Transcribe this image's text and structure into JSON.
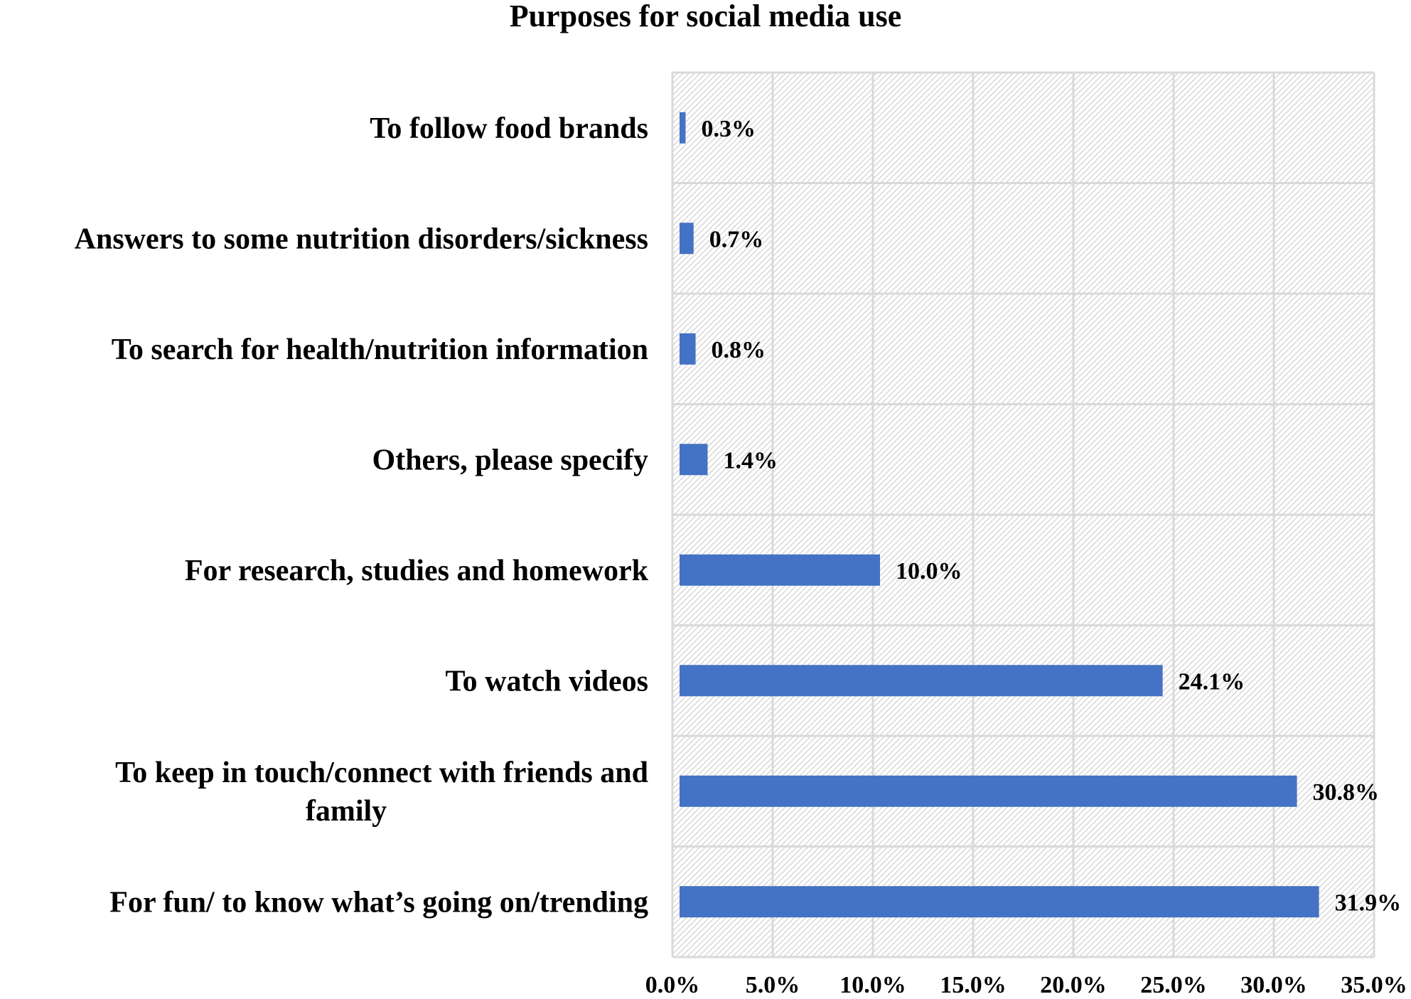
{
  "chart_data": {
    "type": "bar",
    "orientation": "horizontal",
    "title": "Purposes for social media use",
    "categories": [
      "To follow food brands",
      "Answers to some nutrition disorders/sickness",
      "To search for health/nutrition information",
      "Others, please specify",
      "For research, studies and homework",
      "To watch videos",
      "To keep in touch/connect with friends and family",
      "For fun/ to know what’s going on/trending"
    ],
    "category_lines": [
      [
        "To follow food brands"
      ],
      [
        "Answers to some nutrition disorders/sickness"
      ],
      [
        "To search for health/nutrition information"
      ],
      [
        "Others, please specify"
      ],
      [
        "For research, studies and homework"
      ],
      [
        "To watch videos"
      ],
      [
        "To keep in touch/connect with friends and",
        "family"
      ],
      [
        "For fun/ to know what’s going on/trending"
      ]
    ],
    "values": [
      0.3,
      0.7,
      0.8,
      1.4,
      10.0,
      24.1,
      30.8,
      31.9
    ],
    "data_labels": [
      "0.3%",
      "0.7%",
      "0.8%",
      "1.4%",
      "10.0%",
      "24.1%",
      "30.8%",
      "31.9%"
    ],
    "xlim": [
      0,
      35
    ],
    "xticks": [
      0,
      5,
      10,
      15,
      20,
      25,
      30,
      35
    ],
    "xtick_labels": [
      "0.0%",
      "5.0%",
      "10.0%",
      "15.0%",
      "20.0%",
      "25.0%",
      "30.0%",
      "35.0%"
    ],
    "xlabel": "",
    "ylabel": "",
    "grid": true,
    "legend": "none",
    "colors": {
      "bar": "#4472C4",
      "grid": "#D9D9D9",
      "hatch": "#D0D0D0",
      "text": "#000000"
    }
  }
}
